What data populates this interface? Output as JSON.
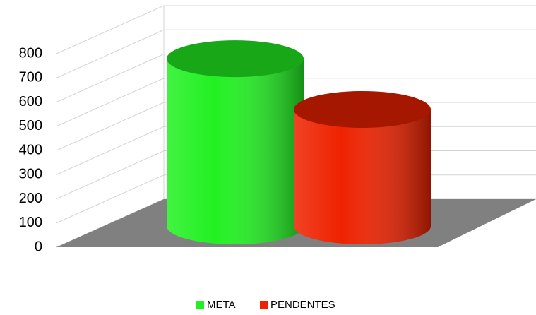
{
  "chart_data": {
    "type": "bar",
    "categories": [
      null
    ],
    "series": [
      {
        "name": "META",
        "color": "#22f022",
        "values": [
          680
        ]
      },
      {
        "name": "PENDENTES",
        "color": "#ee2200",
        "values": [
          470
        ]
      }
    ],
    "ylim": [
      0,
      800
    ],
    "yticks": [
      0,
      100,
      200,
      300,
      400,
      500,
      600,
      700,
      800
    ],
    "grid": true,
    "legend": "bottom"
  }
}
